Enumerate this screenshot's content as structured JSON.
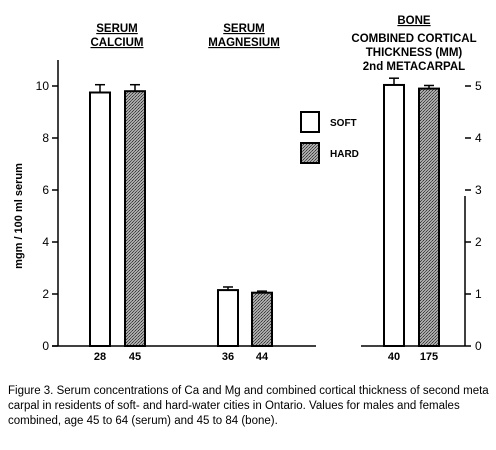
{
  "chart_data": {
    "type": "bar",
    "ylabel": "mgm / 100 ml serum",
    "left_axis": {
      "ylim": [
        0,
        11
      ],
      "ticks": [
        0,
        2,
        4,
        6,
        8,
        10
      ]
    },
    "right_axis": {
      "ylim": [
        0,
        5.5
      ],
      "ticks": [
        0,
        1,
        2,
        3,
        4,
        5
      ]
    },
    "legend": {
      "placement": "center-right",
      "entries": [
        {
          "label": "SOFT",
          "fill": "#ffffff"
        },
        {
          "label": "HARD",
          "fill": "hatched-gray"
        }
      ]
    },
    "groups": [
      {
        "title_lines": [
          "SERUM",
          "CALCIUM"
        ],
        "underlined": [
          true,
          true
        ],
        "axis": "left",
        "bars": [
          {
            "series": "SOFT",
            "value": 9.75,
            "error": 0.3,
            "count": "28"
          },
          {
            "series": "HARD",
            "value": 9.8,
            "error": 0.25,
            "count": "45"
          }
        ]
      },
      {
        "title_lines": [
          "SERUM",
          "MAGNESIUM"
        ],
        "underlined": [
          true,
          true
        ],
        "axis": "left",
        "bars": [
          {
            "series": "SOFT",
            "value": 2.15,
            "error": 0.12,
            "count": "36"
          },
          {
            "series": "HARD",
            "value": 2.05,
            "error": 0.06,
            "count": "44"
          }
        ]
      },
      {
        "title_lines": [
          "BONE",
          "COMBINED CORTICAL",
          "THICKNESS (MM)",
          "2nd METACARPAL"
        ],
        "underlined": [
          true,
          false,
          false,
          false
        ],
        "axis": "right",
        "bars": [
          {
            "series": "SOFT",
            "value": 5.02,
            "error": 0.13,
            "count": "40"
          },
          {
            "series": "HARD",
            "value": 4.95,
            "error": 0.06,
            "count": "175"
          }
        ]
      }
    ]
  },
  "caption": "Figure 3.  Serum concentrations of Ca and Mg and combined cortical thickness of second meta carpal in residents of soft- and hard-water cities in Ontario.  Values for males and females combined, age 45 to 64 (serum) and 45 to 84 (bone)."
}
